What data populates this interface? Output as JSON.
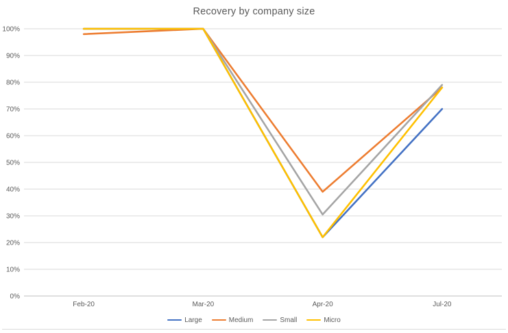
{
  "chart_data": {
    "type": "line",
    "title": "Recovery by company size",
    "categories": [
      "Feb-20",
      "Mar-20",
      "Apr-20",
      "Jul-20"
    ],
    "series": [
      {
        "name": "Large",
        "color": "#4472C4",
        "values": [
          100,
          100,
          22,
          70
        ]
      },
      {
        "name": "Medium",
        "color": "#ED7D31",
        "values": [
          98,
          100,
          39,
          78
        ]
      },
      {
        "name": "Small",
        "color": "#A5A5A5",
        "values": [
          100,
          100,
          30.5,
          79
        ]
      },
      {
        "name": "Micro",
        "color": "#FFC000",
        "values": [
          100,
          100,
          22,
          78
        ]
      }
    ],
    "ylim": [
      0,
      100
    ],
    "y_tick_step": 10,
    "y_ticks": [
      "0%",
      "10%",
      "20%",
      "30%",
      "40%",
      "50%",
      "60%",
      "70%",
      "80%",
      "90%",
      "100%"
    ],
    "grid": true,
    "legend_position": "bottom",
    "colors": {
      "grid": "#D9D9D9",
      "axis": "#BFBFBF",
      "tick_text": "#595959",
      "title_text": "#595959",
      "background": "#FFFFFF"
    }
  }
}
